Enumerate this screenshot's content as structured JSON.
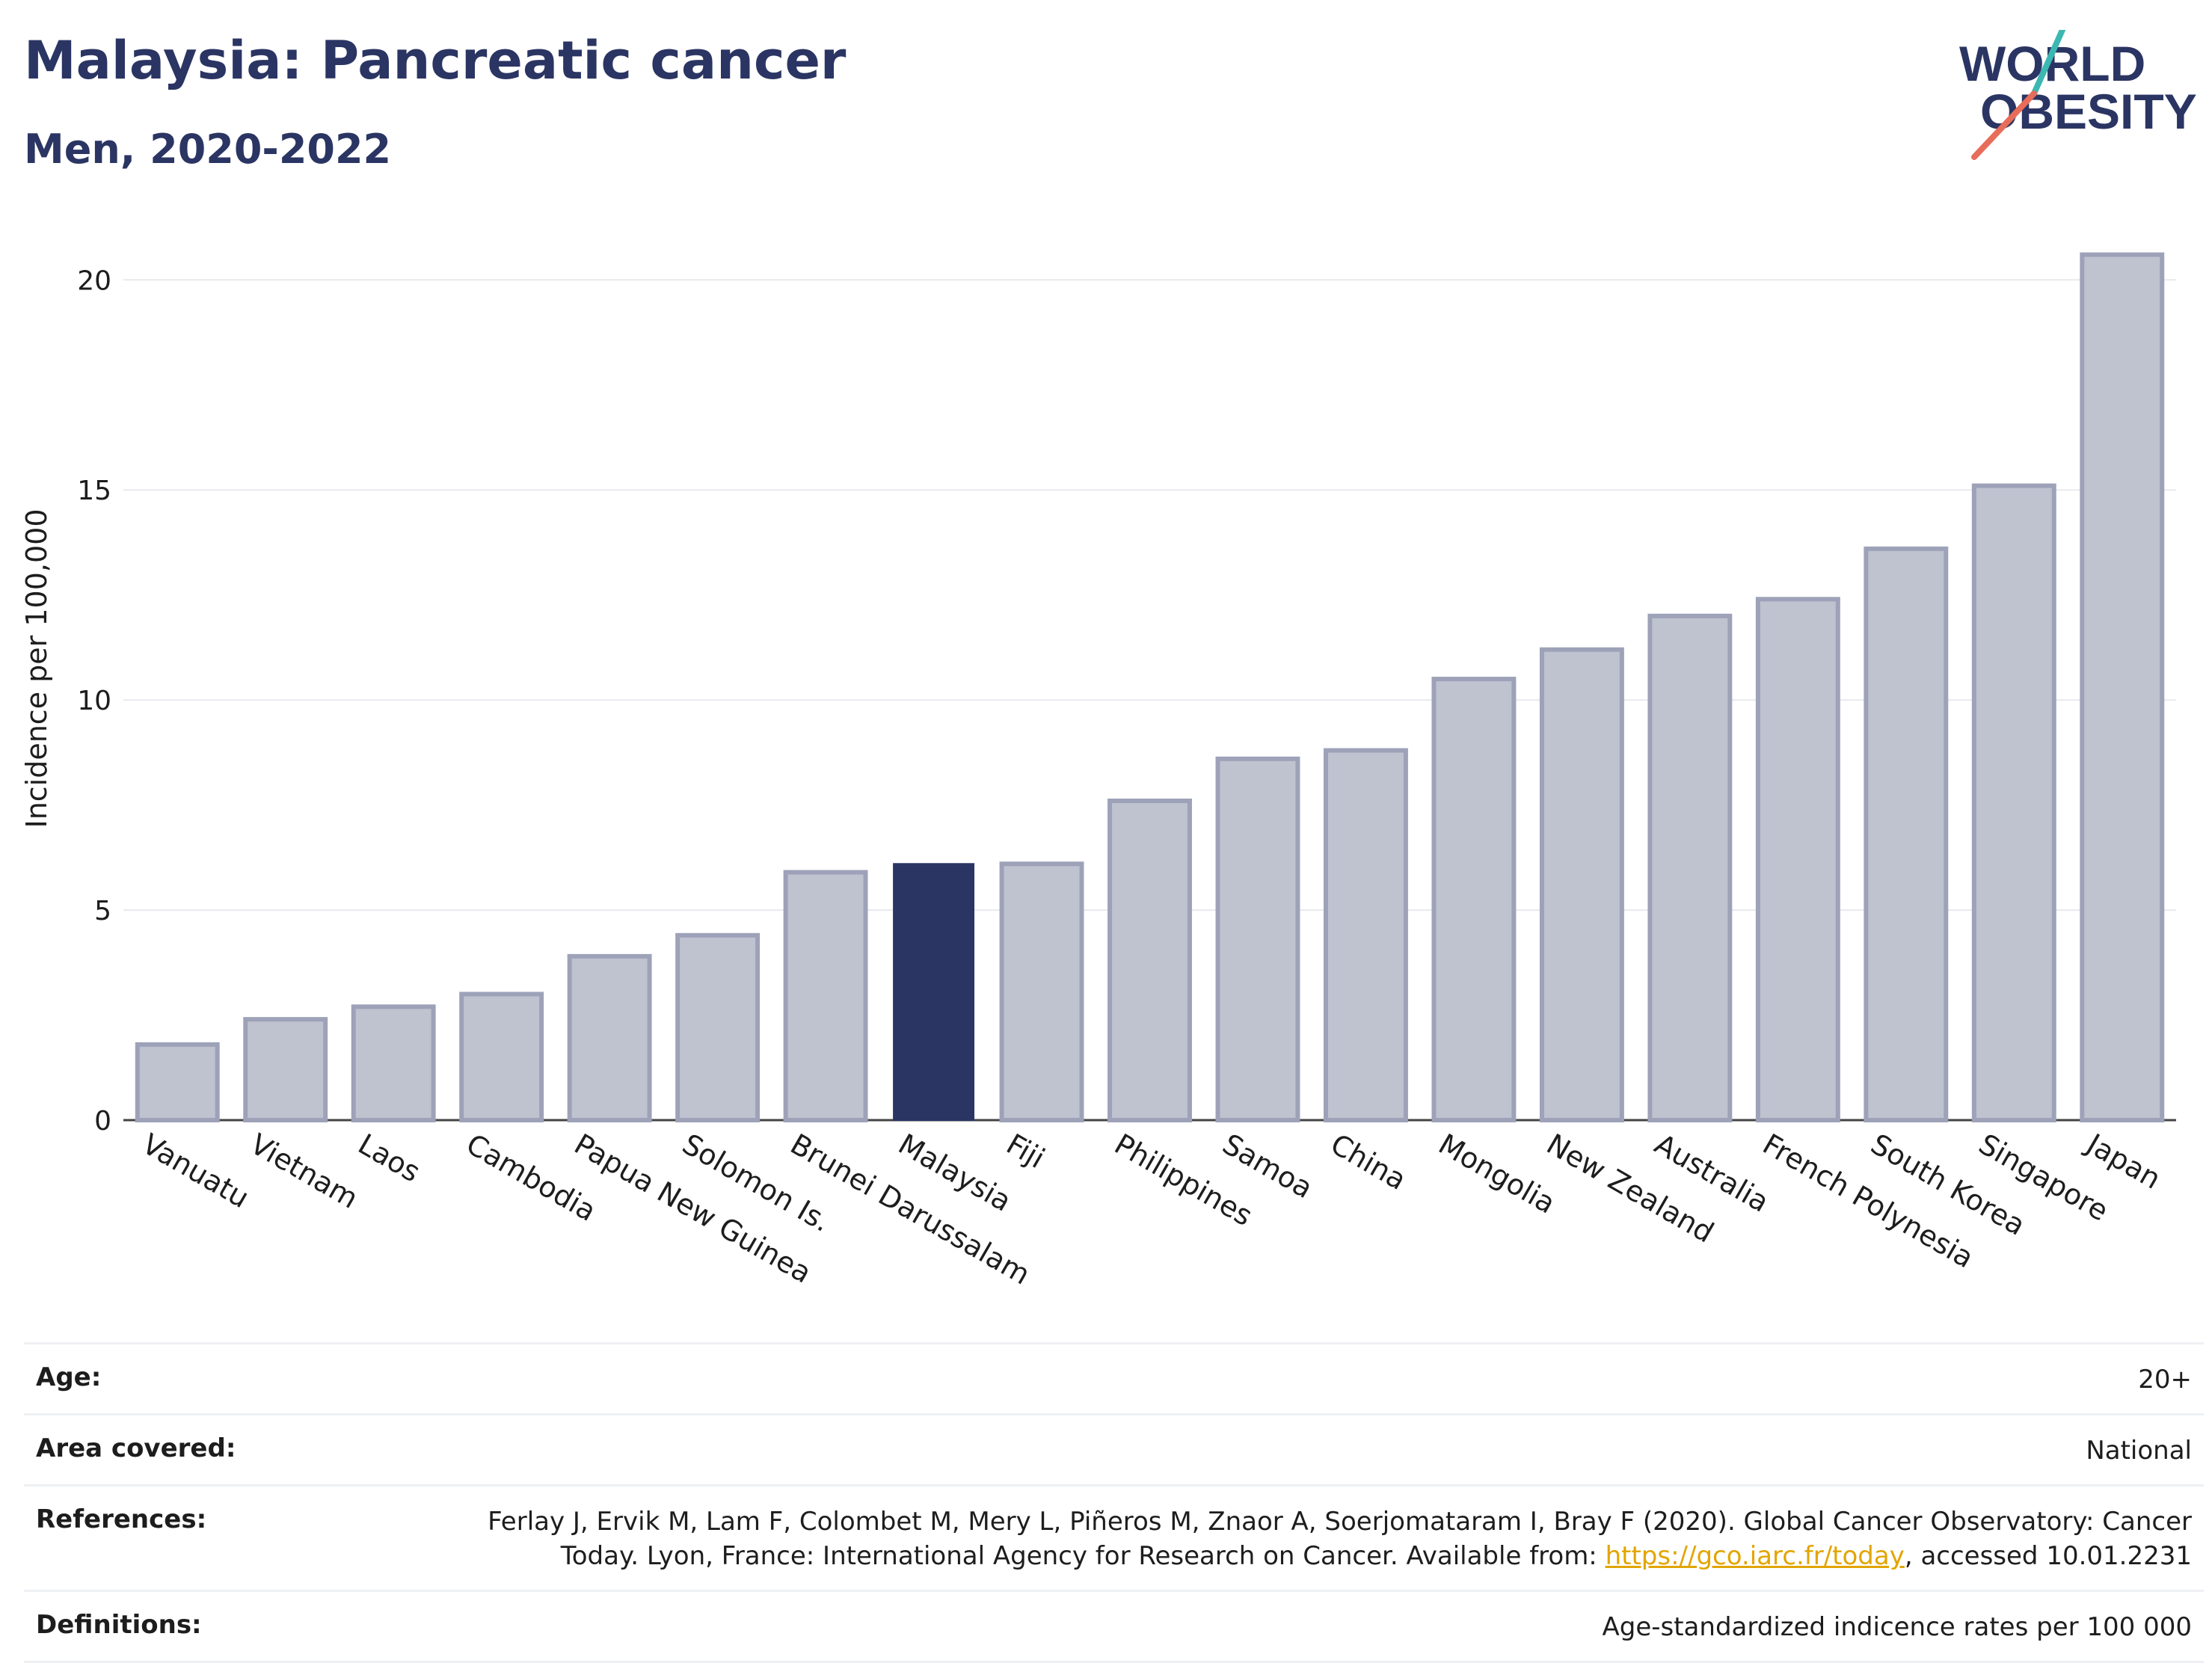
{
  "header": {
    "title": "Malaysia: Pancreatic cancer",
    "subtitle": "Men, 2020-2022"
  },
  "logo": {
    "line1": "WORLD",
    "line2": "OBESITY"
  },
  "colors": {
    "highlight_bar": "#2b3563",
    "other_bar": "#bfc2cf",
    "other_bar_border": "#9ea2b8",
    "grid": "#e8eaee",
    "logo_text": "#2b3563",
    "logo_teal": "#3cb7b2",
    "logo_coral": "#e86c5a",
    "link": "#e2a500"
  },
  "chart_data": {
    "type": "bar",
    "title": "Malaysia: Pancreatic cancer",
    "subtitle": "Men, 2020-2022",
    "ylabel": "Incidence per 100,000",
    "xlabel": "",
    "ylim": [
      0,
      21.5
    ],
    "yticks": [
      0,
      5,
      10,
      15,
      20
    ],
    "grid": true,
    "highlight": "Malaysia",
    "categories": [
      "Vanuatu",
      "Vietnam",
      "Laos",
      "Cambodia",
      "Papua New Guinea",
      "Solomon Is.",
      "Brunei Darussalam",
      "Malaysia",
      "Fiji",
      "Philippines",
      "Samoa",
      "China",
      "Mongolia",
      "New Zealand",
      "Australia",
      "French Polynesia",
      "South Korea",
      "Singapore",
      "Japan"
    ],
    "values": [
      1.8,
      2.4,
      2.7,
      3.0,
      3.9,
      4.4,
      5.9,
      6.1,
      6.1,
      7.6,
      8.6,
      8.8,
      10.5,
      11.2,
      12.0,
      12.4,
      13.6,
      15.1,
      20.6
    ]
  },
  "meta": {
    "age_label": "Age:",
    "age_value": "20+",
    "area_label": "Area covered:",
    "area_value": "National",
    "references_label": "References:",
    "references_line1": "Ferlay J, Ervik M, Lam F, Colombet M, Mery L, Piñeros M, Znaor A, Soerjomataram I, Bray F (2020). Global Cancer Observatory: Cancer",
    "references_line2a": "Today. Lyon, France: International Agency for Research on Cancer. Available from: ",
    "references_link": "https://gco.iarc.fr/today",
    "references_line2b": ", accessed 10.01.2231",
    "definitions_label": "Definitions:",
    "definitions_value": "Age-standardized indicence rates per 100 000"
  }
}
